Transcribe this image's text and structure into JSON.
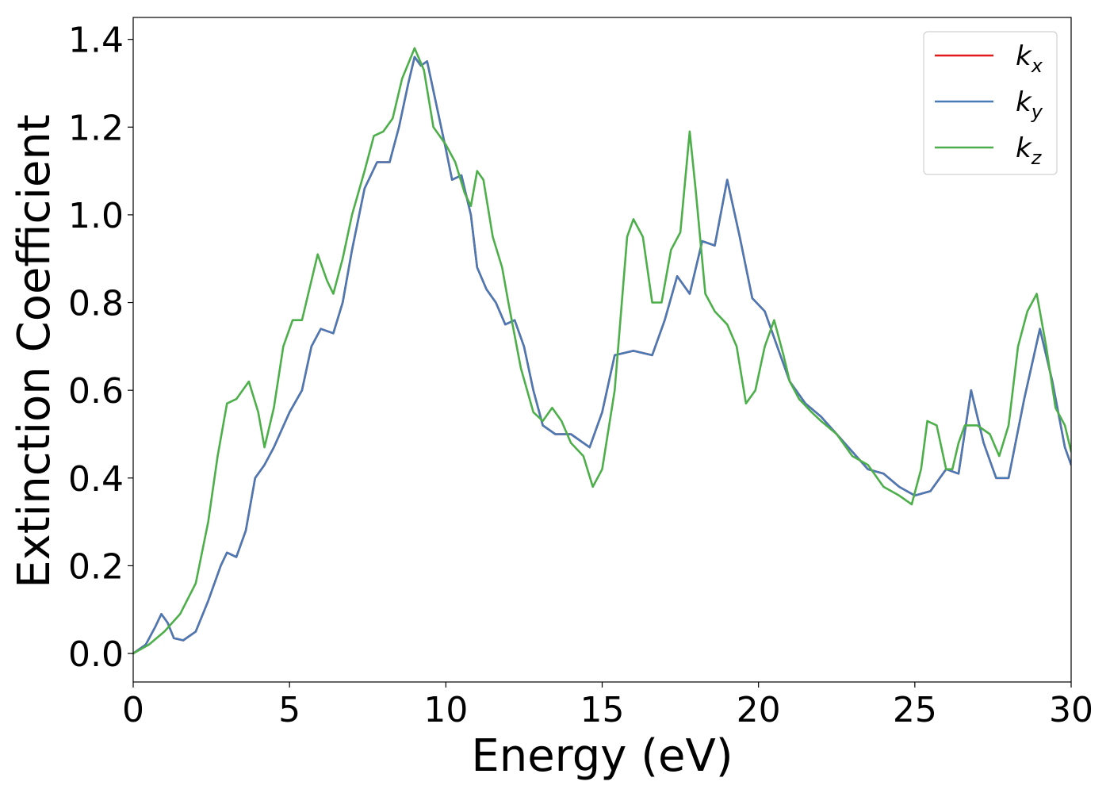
{
  "chart_data": {
    "type": "line",
    "title": "",
    "xlabel": "Energy (eV)",
    "ylabel": "Extinction Coefficient",
    "xlim": [
      0,
      30
    ],
    "ylim": [
      -0.065,
      1.45
    ],
    "xticks": [
      0,
      5,
      10,
      15,
      20,
      25,
      30
    ],
    "xtick_labels": [
      "0",
      "5",
      "10",
      "15",
      "20",
      "25",
      "30"
    ],
    "yticks": [
      0.0,
      0.2,
      0.4,
      0.6,
      0.8,
      1.0,
      1.2,
      1.4
    ],
    "ytick_labels": [
      "0.0",
      "0.2",
      "0.4",
      "0.6",
      "0.8",
      "1.0",
      "1.2",
      "1.4"
    ],
    "grid": false,
    "legend_position": "top-right",
    "series": [
      {
        "name": "kx",
        "label_main": "k",
        "label_sub": "x",
        "color": "#e41a1c",
        "x": [
          0,
          0.4,
          0.7,
          0.9,
          1.1,
          1.3,
          1.6,
          2.0,
          2.4,
          2.8,
          3.0,
          3.3,
          3.6,
          3.9,
          4.2,
          4.5,
          5.0,
          5.4,
          5.7,
          6.0,
          6.4,
          6.7,
          7.0,
          7.4,
          7.8,
          8.2,
          8.5,
          8.8,
          9.0,
          9.2,
          9.4,
          9.7,
          10.0,
          10.2,
          10.5,
          10.8,
          11.0,
          11.3,
          11.6,
          11.9,
          12.2,
          12.5,
          12.8,
          13.1,
          13.5,
          14.0,
          14.6,
          15.0,
          15.4,
          16.0,
          16.6,
          17.0,
          17.4,
          17.8,
          18.2,
          18.6,
          19.0,
          19.4,
          19.8,
          20.2,
          20.6,
          21.0,
          21.5,
          22.0,
          22.5,
          23.0,
          23.5,
          24.0,
          24.5,
          25.0,
          25.5,
          26.0,
          26.4,
          26.8,
          27.2,
          27.6,
          28.0,
          28.5,
          29.0,
          29.4,
          29.8,
          30.0
        ],
        "y": [
          0.0,
          0.02,
          0.06,
          0.09,
          0.07,
          0.035,
          0.03,
          0.05,
          0.12,
          0.2,
          0.23,
          0.22,
          0.28,
          0.4,
          0.43,
          0.47,
          0.55,
          0.6,
          0.7,
          0.74,
          0.73,
          0.8,
          0.92,
          1.06,
          1.12,
          1.12,
          1.2,
          1.3,
          1.36,
          1.34,
          1.35,
          1.25,
          1.15,
          1.08,
          1.09,
          1.0,
          0.88,
          0.83,
          0.8,
          0.75,
          0.76,
          0.7,
          0.6,
          0.52,
          0.5,
          0.5,
          0.47,
          0.55,
          0.68,
          0.69,
          0.68,
          0.76,
          0.86,
          0.82,
          0.94,
          0.93,
          1.08,
          0.95,
          0.81,
          0.78,
          0.7,
          0.62,
          0.57,
          0.54,
          0.5,
          0.46,
          0.42,
          0.41,
          0.38,
          0.36,
          0.37,
          0.42,
          0.41,
          0.6,
          0.48,
          0.4,
          0.4,
          0.58,
          0.74,
          0.62,
          0.47,
          0.43
        ]
      },
      {
        "name": "ky",
        "label_main": "k",
        "label_sub": "y",
        "color": "#4a7ab5",
        "x": [
          0,
          0.4,
          0.7,
          0.9,
          1.1,
          1.3,
          1.6,
          2.0,
          2.4,
          2.8,
          3.0,
          3.3,
          3.6,
          3.9,
          4.2,
          4.5,
          5.0,
          5.4,
          5.7,
          6.0,
          6.4,
          6.7,
          7.0,
          7.4,
          7.8,
          8.2,
          8.5,
          8.8,
          9.0,
          9.2,
          9.4,
          9.7,
          10.0,
          10.2,
          10.5,
          10.8,
          11.0,
          11.3,
          11.6,
          11.9,
          12.2,
          12.5,
          12.8,
          13.1,
          13.5,
          14.0,
          14.6,
          15.0,
          15.4,
          16.0,
          16.6,
          17.0,
          17.4,
          17.8,
          18.2,
          18.6,
          19.0,
          19.4,
          19.8,
          20.2,
          20.6,
          21.0,
          21.5,
          22.0,
          22.5,
          23.0,
          23.5,
          24.0,
          24.5,
          25.0,
          25.5,
          26.0,
          26.4,
          26.8,
          27.2,
          27.6,
          28.0,
          28.5,
          29.0,
          29.4,
          29.8,
          30.0
        ],
        "y": [
          0.0,
          0.02,
          0.06,
          0.09,
          0.07,
          0.035,
          0.03,
          0.05,
          0.12,
          0.2,
          0.23,
          0.22,
          0.28,
          0.4,
          0.43,
          0.47,
          0.55,
          0.6,
          0.7,
          0.74,
          0.73,
          0.8,
          0.92,
          1.06,
          1.12,
          1.12,
          1.2,
          1.3,
          1.36,
          1.34,
          1.35,
          1.25,
          1.15,
          1.08,
          1.09,
          1.0,
          0.88,
          0.83,
          0.8,
          0.75,
          0.76,
          0.7,
          0.6,
          0.52,
          0.5,
          0.5,
          0.47,
          0.55,
          0.68,
          0.69,
          0.68,
          0.76,
          0.86,
          0.82,
          0.94,
          0.93,
          1.08,
          0.95,
          0.81,
          0.78,
          0.7,
          0.62,
          0.57,
          0.54,
          0.5,
          0.46,
          0.42,
          0.41,
          0.38,
          0.36,
          0.37,
          0.42,
          0.41,
          0.6,
          0.48,
          0.4,
          0.4,
          0.58,
          0.74,
          0.62,
          0.47,
          0.43
        ]
      },
      {
        "name": "kz",
        "label_main": "k",
        "label_sub": "z",
        "color": "#4daf4a",
        "x": [
          0,
          0.5,
          1.0,
          1.5,
          2.0,
          2.4,
          2.7,
          3.0,
          3.3,
          3.7,
          4.0,
          4.2,
          4.5,
          4.8,
          5.1,
          5.4,
          5.6,
          5.9,
          6.2,
          6.4,
          6.7,
          7.0,
          7.4,
          7.7,
          8.0,
          8.3,
          8.6,
          9.0,
          9.3,
          9.6,
          10.0,
          10.3,
          10.6,
          10.8,
          11.0,
          11.2,
          11.5,
          11.8,
          12.0,
          12.4,
          12.8,
          13.1,
          13.4,
          13.7,
          14.0,
          14.4,
          14.7,
          15.0,
          15.4,
          15.8,
          16.0,
          16.3,
          16.6,
          16.9,
          17.2,
          17.5,
          17.8,
          18.0,
          18.3,
          18.6,
          19.0,
          19.3,
          19.6,
          19.9,
          20.2,
          20.5,
          20.8,
          21.0,
          21.3,
          21.7,
          22.0,
          22.5,
          23.0,
          23.5,
          24.0,
          24.5,
          24.9,
          25.2,
          25.4,
          25.7,
          26.0,
          26.2,
          26.4,
          26.6,
          27.0,
          27.4,
          27.7,
          28.0,
          28.3,
          28.6,
          28.9,
          29.2,
          29.5,
          29.8,
          30.0
        ],
        "y": [
          0.0,
          0.02,
          0.05,
          0.09,
          0.16,
          0.3,
          0.45,
          0.57,
          0.58,
          0.62,
          0.55,
          0.47,
          0.56,
          0.7,
          0.76,
          0.76,
          0.82,
          0.91,
          0.85,
          0.82,
          0.9,
          1.0,
          1.1,
          1.18,
          1.19,
          1.22,
          1.31,
          1.38,
          1.33,
          1.2,
          1.16,
          1.12,
          1.05,
          1.02,
          1.1,
          1.08,
          0.95,
          0.88,
          0.8,
          0.65,
          0.55,
          0.53,
          0.56,
          0.53,
          0.48,
          0.45,
          0.38,
          0.42,
          0.6,
          0.95,
          0.99,
          0.95,
          0.8,
          0.8,
          0.92,
          0.96,
          1.19,
          1.05,
          0.82,
          0.78,
          0.75,
          0.7,
          0.57,
          0.6,
          0.7,
          0.76,
          0.68,
          0.62,
          0.58,
          0.55,
          0.53,
          0.5,
          0.45,
          0.43,
          0.38,
          0.36,
          0.34,
          0.42,
          0.53,
          0.52,
          0.42,
          0.42,
          0.48,
          0.52,
          0.52,
          0.5,
          0.45,
          0.52,
          0.7,
          0.78,
          0.82,
          0.7,
          0.56,
          0.52,
          0.46
        ]
      }
    ]
  }
}
